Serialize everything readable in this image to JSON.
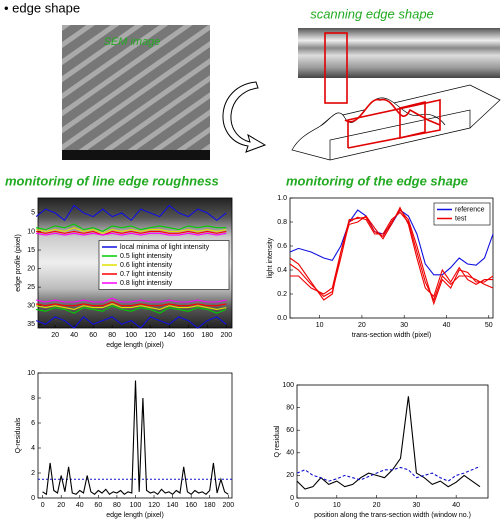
{
  "header": {
    "bullet": "• edge shape",
    "sem_label": "SEM image",
    "scan_title": "scanning edge shape",
    "left_title": "monitoring of line edge roughness",
    "right_title": "monitoring of the edge shape"
  },
  "chart_data": [
    {
      "type": "line",
      "x_label": "edge length (pixel)",
      "y_label": "edge profile (pixel)",
      "legend": "center right",
      "xlim": [
        2,
        206
      ],
      "ylim": [
        36,
        1
      ],
      "xticks": [
        20,
        40,
        60,
        80,
        100,
        120,
        140,
        160,
        180,
        200
      ],
      "yticks": [
        5,
        10,
        15,
        20,
        25,
        30,
        35
      ],
      "x": [
        0,
        10,
        20,
        30,
        40,
        50,
        60,
        70,
        80,
        90,
        100,
        110,
        120,
        130,
        140,
        150,
        160,
        170,
        180,
        190,
        200
      ],
      "series": [
        {
          "name": "local minima of light intensity",
          "color": "#1010e0",
          "values": [
            6,
            4,
            5,
            7,
            3,
            5,
            6,
            4,
            6,
            5,
            7,
            4,
            5,
            6,
            3,
            5,
            6,
            4,
            5,
            7,
            5
          ],
          "lower_values": [
            34,
            35,
            33,
            34,
            36,
            33,
            35,
            34,
            33,
            35,
            34,
            36,
            33,
            34,
            35,
            33,
            34,
            36,
            34,
            33,
            35
          ]
        },
        {
          "name": "0.5 light intensity",
          "color": "#00cc00",
          "values": [
            9,
            9.5,
            8.5,
            9,
            8,
            9.5,
            9,
            10,
            8.5,
            9,
            8.5,
            9.5,
            9,
            8.5,
            9,
            9.5,
            8.5,
            9,
            8.5,
            9,
            9
          ],
          "lower_values": [
            31,
            31.5,
            30.5,
            31,
            32,
            30.5,
            31,
            31.5,
            30,
            31,
            31.5,
            30.5,
            31,
            32,
            30.5,
            31,
            31.5,
            30.5,
            31,
            32,
            31
          ]
        },
        {
          "name": "0.6 light intensity",
          "color": "#e0e000",
          "values": [
            9.5,
            10,
            9.5,
            10,
            9,
            10,
            9.5,
            10.5,
            9.5,
            10,
            9.5,
            10,
            9.5,
            9.5,
            10,
            10,
            9.5,
            10,
            9.5,
            10,
            9.5
          ],
          "lower_values": [
            30,
            30.5,
            30,
            30.5,
            31,
            30,
            30.5,
            30.5,
            29.5,
            30.5,
            30.5,
            30,
            30.5,
            31,
            30,
            30.5,
            30.5,
            30,
            30.5,
            31,
            30.5
          ]
        },
        {
          "name": "0.7 light intensity",
          "color": "#ff0000",
          "values": [
            10,
            10.5,
            10,
            10.5,
            10,
            10.5,
            10,
            11,
            10,
            10.5,
            10,
            10.5,
            10,
            10,
            10.5,
            10.5,
            10,
            10.5,
            10,
            10.5,
            10
          ],
          "lower_values": [
            29.5,
            30,
            29.5,
            30,
            30,
            29.5,
            30,
            30,
            29,
            30,
            30,
            29.5,
            30,
            30,
            29.5,
            30,
            30,
            29.5,
            30,
            30,
            29.5
          ]
        },
        {
          "name": "0.8 light intensity",
          "color": "#ff00ff",
          "values": [
            10.5,
            11,
            10.5,
            11,
            10.5,
            11,
            10.5,
            11,
            10.5,
            11,
            10.5,
            11,
            10.5,
            10.5,
            11,
            11,
            10.5,
            11,
            10.5,
            11,
            10.5
          ],
          "lower_values": [
            28.5,
            29,
            28.5,
            29,
            29,
            28.5,
            29,
            29,
            28,
            29,
            29,
            28.5,
            29,
            29,
            28.5,
            29,
            29,
            28.5,
            29,
            29,
            28.5
          ]
        }
      ]
    },
    {
      "type": "line",
      "x_label": "trans-section width (pixel)",
      "y_label": "light intensity",
      "legend": "upper right",
      "xlim": [
        3,
        51
      ],
      "ylim": [
        0,
        1
      ],
      "xticks": [
        10,
        20,
        30,
        40,
        50
      ],
      "yticks": [
        {
          "value": 0,
          "label": "0.0"
        },
        0.2,
        0.4,
        0.6,
        0.8,
        {
          "value": 1,
          "label": "1.0"
        }
      ],
      "x": [
        3,
        5,
        8,
        11,
        13,
        15,
        17,
        19,
        21,
        23,
        25,
        27,
        29,
        31,
        33,
        35,
        37,
        39,
        41,
        43,
        45,
        47,
        49,
        51
      ],
      "series": [
        {
          "name": "reference",
          "color": "#1010e0",
          "values": [
            0.55,
            0.58,
            0.55,
            0.5,
            0.48,
            0.6,
            0.8,
            0.9,
            0.85,
            0.72,
            0.7,
            0.78,
            0.9,
            0.85,
            0.7,
            0.45,
            0.36,
            0.36,
            0.42,
            0.5,
            0.45,
            0.44,
            0.5,
            0.7
          ]
        },
        {
          "name": "test",
          "color": "#ee0000",
          "values": [
            [
              0.5,
              0.45,
              0.3,
              0.15,
              0.2,
              0.55,
              0.82,
              0.83,
              0.84,
              0.72,
              0.68,
              0.8,
              0.9,
              0.82,
              0.6,
              0.35,
              0.12,
              0.32,
              0.25,
              0.4,
              0.38,
              0.3,
              0.3,
              0.35
            ],
            [
              0.45,
              0.4,
              0.28,
              0.18,
              0.22,
              0.5,
              0.8,
              0.84,
              0.82,
              0.7,
              0.7,
              0.82,
              0.88,
              0.8,
              0.55,
              0.3,
              0.15,
              0.35,
              0.28,
              0.35,
              0.35,
              0.32,
              0.28,
              0.25
            ],
            [
              0.35,
              0.35,
              0.25,
              0.2,
              0.25,
              0.55,
              0.78,
              0.8,
              0.85,
              0.75,
              0.66,
              0.78,
              0.92,
              0.78,
              0.5,
              0.25,
              0.18,
              0.4,
              0.3,
              0.42,
              0.32,
              0.28,
              0.32,
              0.32
            ]
          ]
        }
      ]
    },
    {
      "type": "line",
      "x_label": "edge length (pixel)",
      "y_label": "Q-residuals",
      "xlim": [
        -5,
        204
      ],
      "ylim": [
        0,
        10
      ],
      "xticks": [
        0,
        20,
        40,
        60,
        80,
        100,
        120,
        140,
        160,
        180,
        200
      ],
      "yticks": [
        0,
        2,
        4,
        6,
        8,
        10
      ],
      "x": [
        0,
        4,
        8,
        12,
        16,
        20,
        24,
        28,
        32,
        36,
        40,
        44,
        48,
        52,
        56,
        60,
        64,
        68,
        72,
        76,
        80,
        84,
        88,
        92,
        96,
        100,
        104,
        108,
        112,
        116,
        120,
        124,
        128,
        132,
        136,
        140,
        144,
        148,
        152,
        156,
        160,
        164,
        168,
        172,
        176,
        180,
        184,
        188,
        192,
        196,
        200
      ],
      "series": [
        {
          "color": "#000000",
          "values": [
            0.5,
            0.3,
            2.8,
            0.6,
            0.4,
            1.8,
            0.5,
            2.5,
            0.4,
            0.3,
            0.6,
            0.4,
            1.8,
            0.5,
            0.3,
            0.6,
            0.4,
            0.7,
            0.3,
            0.5,
            0.4,
            0.6,
            0.3,
            0.5,
            0.4,
            9.4,
            0.5,
            8.0,
            0.6,
            0.4,
            0.5,
            0.3,
            0.7,
            0.4,
            0.5,
            0.3,
            0.6,
            0.4,
            2.5,
            0.5,
            0.3,
            0.6,
            0.4,
            0.5,
            0.3,
            0.6,
            2.8,
            0.4,
            1.5,
            0.5,
            0.3
          ]
        }
      ],
      "threshold": {
        "value": 1.5,
        "color": "#1010cc"
      }
    },
    {
      "type": "line",
      "x_label": "position along the trans-section width (window no.)",
      "y_label": "Q residual",
      "xlim": [
        0,
        48
      ],
      "ylim": [
        0,
        100
      ],
      "xticks": [
        0,
        10,
        20,
        30,
        40
      ],
      "yticks": [
        0,
        20,
        40,
        60,
        80,
        100
      ],
      "x": [
        0,
        2,
        4,
        6,
        8,
        10,
        12,
        14,
        16,
        18,
        20,
        22,
        24,
        26,
        28,
        30,
        32,
        34,
        36,
        38,
        40,
        42,
        44,
        46
      ],
      "series": [
        {
          "color": "#000000",
          "values": [
            15,
            8,
            10,
            18,
            12,
            15,
            10,
            12,
            18,
            22,
            20,
            18,
            25,
            35,
            90,
            22,
            18,
            12,
            15,
            10,
            14,
            20,
            15,
            10
          ]
        },
        {
          "color": "#1010cc",
          "dash": true,
          "values": [
            22,
            25,
            20,
            18,
            15,
            17,
            20,
            18,
            16,
            19,
            22,
            25,
            25,
            27,
            25,
            18,
            20,
            22,
            18,
            15,
            20,
            22,
            25,
            28
          ]
        }
      ]
    }
  ]
}
